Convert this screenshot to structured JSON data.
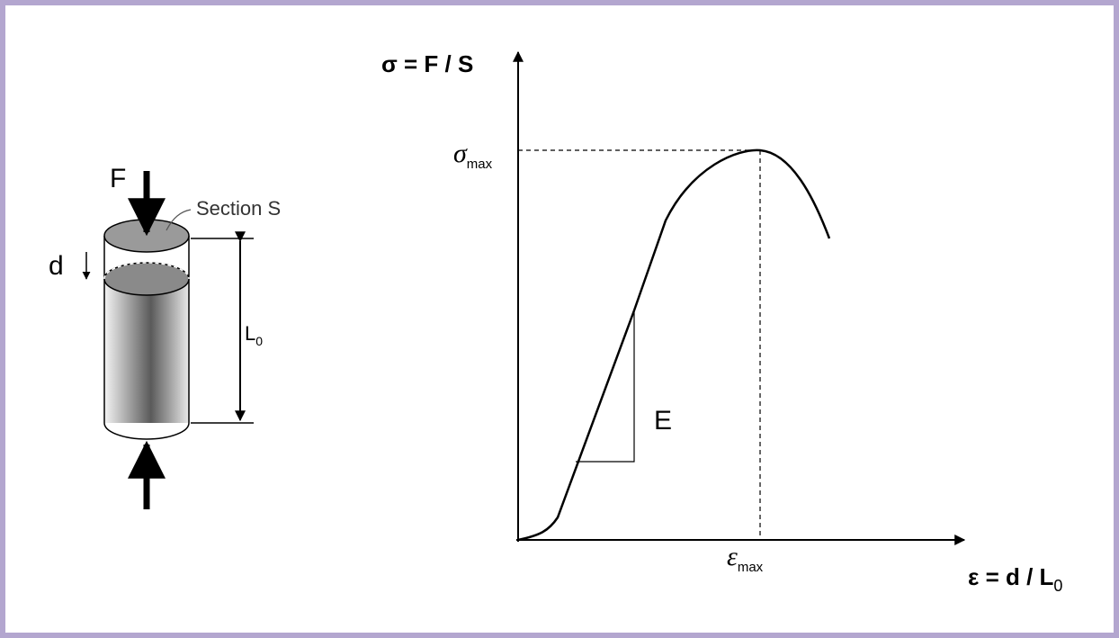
{
  "specimen": {
    "force_label": "F",
    "section_label": "Section S",
    "displacement_label": "d",
    "length_label": {
      "base": "L",
      "sub": "0"
    }
  },
  "graph": {
    "y_axis_label": "σ = F / S",
    "x_axis_label": {
      "base": "ε = d / L",
      "sub": "0"
    },
    "peak_stress": {
      "base": "σ",
      "sub": "max"
    },
    "peak_strain": {
      "base": "ε",
      "sub": "max"
    },
    "slope_label": "E"
  }
}
